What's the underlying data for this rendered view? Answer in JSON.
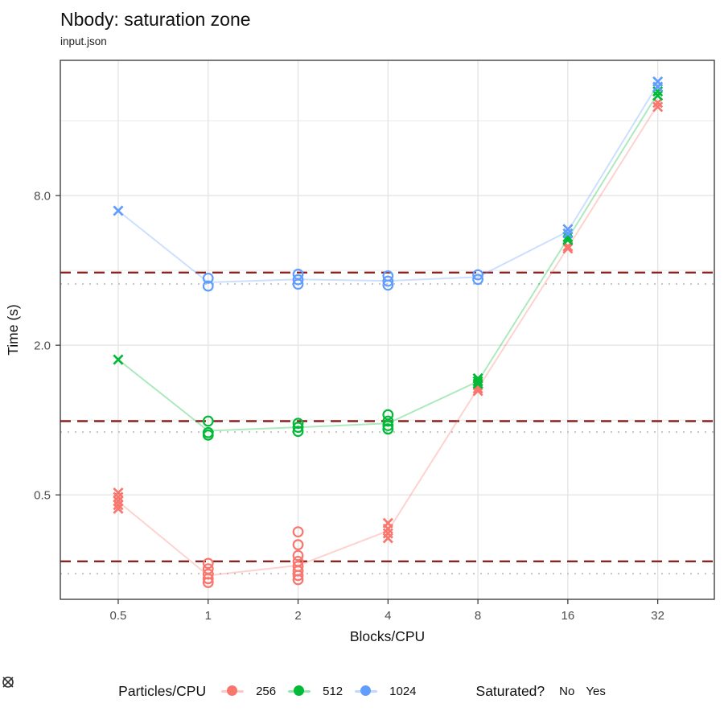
{
  "header": {
    "title": "Nbody: saturation zone",
    "subtitle": "input.json"
  },
  "chart_data": {
    "type": "scatter",
    "title": "Nbody: saturation zone",
    "subtitle": "input.json",
    "xlabel": "Blocks/CPU",
    "ylabel": "Time (s)",
    "x_scale": "log2",
    "y_scale": "log2",
    "x_ticks": [
      "0.5",
      "1",
      "2",
      "4",
      "8",
      "16",
      "32"
    ],
    "x_tick_values": [
      0.5,
      1,
      2,
      4,
      8,
      16,
      32
    ],
    "y_ticks": [
      "0.5",
      "2.0",
      "8.0"
    ],
    "y_tick_values": [
      0.5,
      2.0,
      8.0
    ],
    "y_minor_gridlines": [
      1,
      4,
      16
    ],
    "x_range": [
      0.32,
      49.5
    ],
    "y_range": [
      0.19,
      28
    ],
    "grid": "on",
    "legend_position": "bottom",
    "colors": {
      "grid_major": "#e3e3e3",
      "grid_minor": "#ececec",
      "panel_border": "#333333",
      "dashed_ref": "#8B2323",
      "dotted_ref": "#c8c8c8",
      "tick_text": "#4d4d4d"
    },
    "ref_lines": {
      "dashed_values": [
        3.92,
        0.99,
        0.27
      ],
      "dotted_values": [
        3.53,
        0.895,
        0.241
      ],
      "dashed_style": "dashed",
      "dotted_style": "dotted"
    },
    "legend": {
      "color_title": "Particles/CPU",
      "color_items": [
        {
          "label": "256",
          "color": "#F8766D"
        },
        {
          "label": "512",
          "color": "#00BA38"
        },
        {
          "label": "1024",
          "color": "#619CFF"
        }
      ],
      "shape_title": "Saturated?",
      "shape_items": [
        {
          "label": "No",
          "shape": "x"
        },
        {
          "label": "Yes",
          "shape": "circle"
        }
      ]
    },
    "series": [
      {
        "name": "256",
        "color": "#F8766D",
        "line": [
          [
            0.5,
            0.47
          ],
          [
            1,
            0.237
          ],
          [
            2,
            0.26
          ],
          [
            4,
            0.358
          ],
          [
            8,
            1.34
          ],
          [
            16,
            4.95
          ],
          [
            32,
            18.55
          ]
        ],
        "points": [
          {
            "x": 0.5,
            "shape": "x",
            "ys": [
              0.51,
              0.49,
              0.472,
              0.455,
              0.44
            ]
          },
          {
            "x": 1,
            "shape": "circle",
            "ys": [
              0.265,
              0.252,
              0.24,
              0.23,
              0.222
            ]
          },
          {
            "x": 2,
            "shape": "circle",
            "ys": [
              0.355,
              0.315,
              0.285,
              0.27,
              0.258,
              0.247,
              0.237,
              0.228
            ]
          },
          {
            "x": 4,
            "shape": "x",
            "ys": [
              0.385,
              0.365,
              0.35,
              0.335
            ]
          },
          {
            "x": 8,
            "shape": "x",
            "ys": [
              1.38,
              1.34,
              1.31
            ]
          },
          {
            "x": 16,
            "shape": "x",
            "ys": [
              5.0,
              4.9
            ]
          },
          {
            "x": 32,
            "shape": "x",
            "ys": [
              18.9,
              18.2
            ]
          }
        ]
      },
      {
        "name": "512",
        "color": "#00BA38",
        "line": [
          [
            0.5,
            1.75
          ],
          [
            1,
            0.905
          ],
          [
            2,
            0.935
          ],
          [
            4,
            0.97
          ],
          [
            8,
            1.43
          ],
          [
            16,
            5.37
          ],
          [
            32,
            20.6
          ]
        ],
        "points": [
          {
            "x": 0.5,
            "shape": "x",
            "ys": [
              1.75
            ]
          },
          {
            "x": 1,
            "shape": "circle",
            "ys": [
              0.99,
              0.89,
              0.87
            ]
          },
          {
            "x": 2,
            "shape": "circle",
            "ys": [
              0.97,
              0.935,
              0.9
            ]
          },
          {
            "x": 4,
            "shape": "circle",
            "ys": [
              1.05,
              0.99,
              0.95,
              0.92
            ]
          },
          {
            "x": 8,
            "shape": "x",
            "ys": [
              1.47,
              1.43,
              1.4
            ]
          },
          {
            "x": 16,
            "shape": "x",
            "ys": [
              5.45,
              5.3
            ]
          },
          {
            "x": 32,
            "shape": "x",
            "ys": [
              21.0,
              20.2
            ]
          }
        ]
      },
      {
        "name": "1024",
        "color": "#619CFF",
        "line": [
          [
            0.5,
            6.95
          ],
          [
            1,
            3.58
          ],
          [
            2,
            3.68
          ],
          [
            4,
            3.63
          ],
          [
            8,
            3.76
          ],
          [
            16,
            5.74
          ],
          [
            32,
            22.4
          ]
        ],
        "points": [
          {
            "x": 0.5,
            "shape": "x",
            "ys": [
              6.95
            ]
          },
          {
            "x": 1,
            "shape": "circle",
            "ys": [
              3.72,
              3.46
            ]
          },
          {
            "x": 2,
            "shape": "circle",
            "ys": [
              3.86,
              3.67,
              3.52
            ]
          },
          {
            "x": 4,
            "shape": "circle",
            "ys": [
              3.8,
              3.62,
              3.49
            ]
          },
          {
            "x": 8,
            "shape": "circle",
            "ys": [
              3.84,
              3.68
            ]
          },
          {
            "x": 16,
            "shape": "x",
            "ys": [
              5.86,
              5.63
            ]
          },
          {
            "x": 32,
            "shape": "x",
            "ys": [
              23.0,
              21.9
            ]
          }
        ]
      }
    ]
  }
}
